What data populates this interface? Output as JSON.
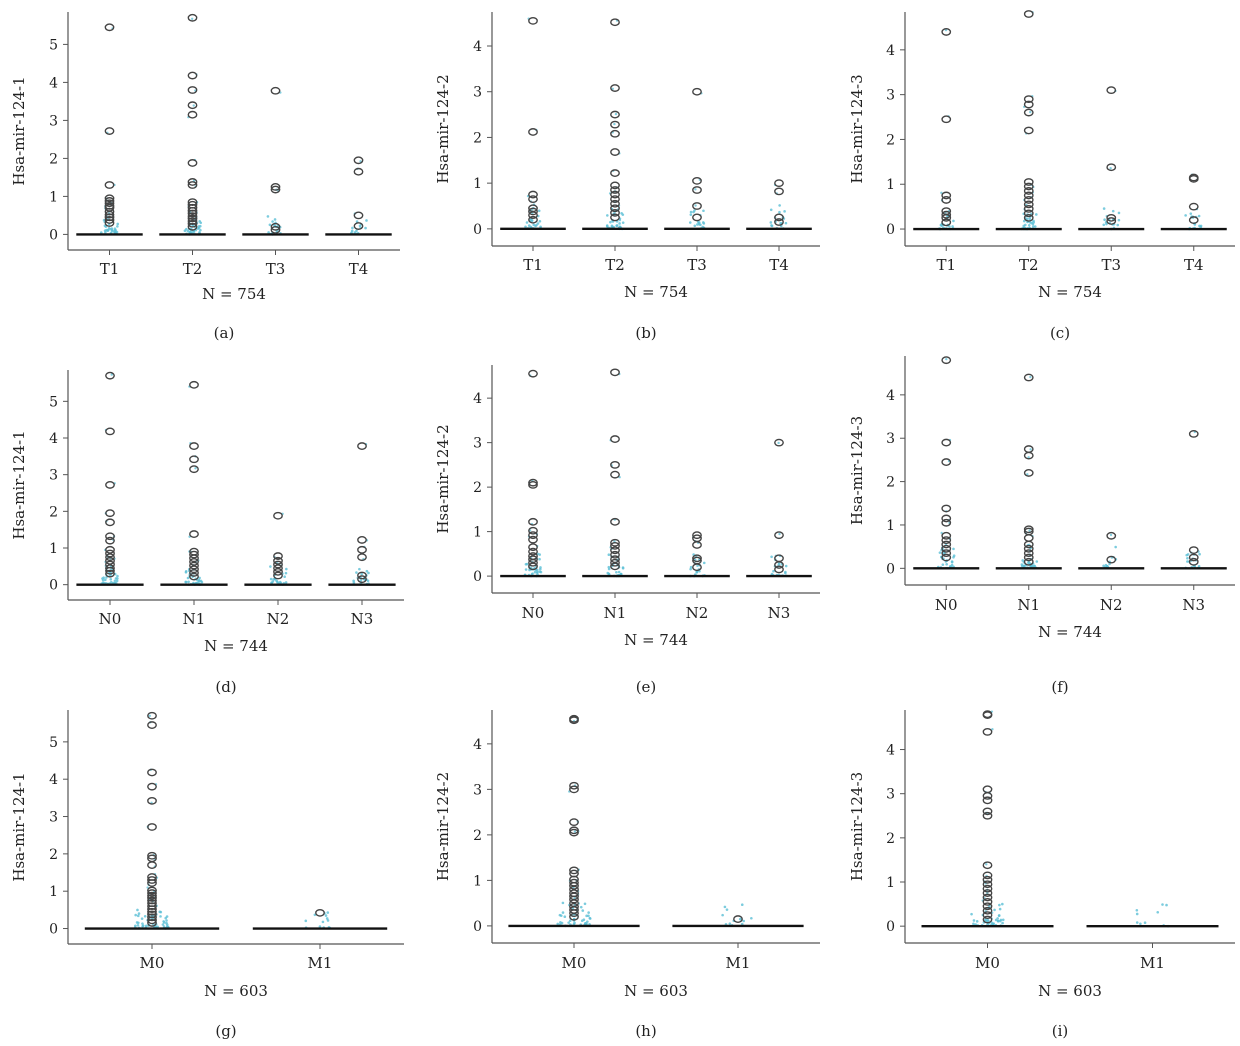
{
  "colors": {
    "axis": "#555555",
    "median": "#111111",
    "outlier_stroke": "#444444",
    "jitter": "#5bbfd6"
  },
  "chart_data": [
    {
      "type": "box",
      "panel": "(a)",
      "ylabel": "Hsa-mir-124-1",
      "n_label": "N = 754",
      "ylim": [
        -0.2,
        5.8
      ],
      "yticks": [
        0,
        1,
        2,
        3,
        4,
        5
      ],
      "categories": [
        "T1",
        "T2",
        "T3",
        "T4"
      ],
      "outliers": [
        [
          5.45,
          2.72,
          1.3,
          0.95,
          0.88,
          0.82,
          0.75,
          0.7,
          0.6,
          0.52,
          0.45,
          0.38,
          0.3
        ],
        [
          5.7,
          4.18,
          3.8,
          3.4,
          3.15,
          1.88,
          1.38,
          1.3,
          0.85,
          0.78,
          0.7,
          0.62,
          0.55,
          0.48,
          0.42,
          0.35,
          0.28,
          0.2
        ],
        [
          3.78,
          1.25,
          1.18,
          0.2,
          0.12
        ],
        [
          1.95,
          1.65,
          0.5,
          0.22
        ]
      ]
    },
    {
      "type": "box",
      "panel": "(b)",
      "ylabel": "Hsa-mir-124-2",
      "n_label": "N = 754",
      "ylim": [
        -0.2,
        4.7
      ],
      "yticks": [
        0,
        1,
        2,
        3,
        4
      ],
      "categories": [
        "T1",
        "T2",
        "T3",
        "T4"
      ],
      "outliers": [
        [
          4.55,
          2.12,
          0.75,
          0.65,
          0.45,
          0.38,
          0.3,
          0.2
        ],
        [
          4.52,
          3.08,
          2.5,
          2.28,
          2.08,
          1.68,
          1.22,
          0.95,
          0.85,
          0.75,
          0.65,
          0.55,
          0.45,
          0.35,
          0.25
        ],
        [
          3.0,
          1.05,
          0.85,
          0.5,
          0.25
        ],
        [
          1.0,
          0.82,
          0.25,
          0.15
        ]
      ]
    },
    {
      "type": "box",
      "panel": "(c)",
      "ylabel": "Hsa-mir-124-3",
      "n_label": "N = 754",
      "ylim": [
        -0.2,
        4.8
      ],
      "yticks": [
        0,
        1,
        2,
        3,
        4
      ],
      "categories": [
        "T1",
        "T2",
        "T3",
        "T4"
      ],
      "outliers": [
        [
          4.4,
          2.45,
          0.75,
          0.65,
          0.4,
          0.32,
          0.25,
          0.15
        ],
        [
          4.8,
          2.9,
          2.78,
          2.6,
          2.2,
          1.05,
          0.95,
          0.85,
          0.75,
          0.65,
          0.55,
          0.45,
          0.35,
          0.25
        ],
        [
          3.1,
          1.38,
          0.25,
          0.18
        ],
        [
          1.15,
          1.12,
          0.5,
          0.2
        ]
      ]
    },
    {
      "type": "box",
      "panel": "(d)",
      "ylabel": "Hsa-mir-124-1",
      "n_label": "N = 744",
      "ylim": [
        -0.2,
        5.8
      ],
      "yticks": [
        0,
        1,
        2,
        3,
        4,
        5
      ],
      "categories": [
        "N0",
        "N1",
        "N2",
        "N3"
      ],
      "outliers": [
        [
          5.7,
          4.18,
          2.72,
          1.95,
          1.7,
          1.32,
          1.2,
          0.95,
          0.85,
          0.75,
          0.65,
          0.55,
          0.45,
          0.38,
          0.3
        ],
        [
          5.45,
          3.78,
          3.42,
          3.15,
          1.38,
          0.9,
          0.82,
          0.72,
          0.62,
          0.52,
          0.42,
          0.32,
          0.22
        ],
        [
          1.88,
          0.78,
          0.65,
          0.55,
          0.45,
          0.35,
          0.25
        ],
        [
          3.78,
          1.22,
          0.95,
          0.75,
          0.25,
          0.15
        ]
      ]
    },
    {
      "type": "box",
      "panel": "(e)",
      "ylabel": "Hsa-mir-124-2",
      "n_label": "N = 744",
      "ylim": [
        -0.2,
        4.7
      ],
      "yticks": [
        0,
        1,
        2,
        3,
        4
      ],
      "categories": [
        "N0",
        "N1",
        "N2",
        "N3"
      ],
      "outliers": [
        [
          4.55,
          2.1,
          2.05,
          1.22,
          1.02,
          0.92,
          0.82,
          0.65,
          0.55,
          0.45,
          0.38,
          0.3,
          0.22
        ],
        [
          4.58,
          3.08,
          2.5,
          2.28,
          1.22,
          0.75,
          0.68,
          0.58,
          0.48,
          0.38,
          0.3,
          0.22
        ],
        [
          0.92,
          0.85,
          0.7,
          0.4,
          0.35,
          0.2
        ],
        [
          3.0,
          0.92,
          0.4,
          0.25,
          0.15
        ]
      ]
    },
    {
      "type": "box",
      "panel": "(f)",
      "ylabel": "Hsa-mir-124-3",
      "n_label": "N = 744",
      "ylim": [
        -0.2,
        4.85
      ],
      "yticks": [
        0,
        1,
        2,
        3,
        4
      ],
      "categories": [
        "N0",
        "N1",
        "N2",
        "N3"
      ],
      "outliers": [
        [
          4.8,
          2.9,
          2.45,
          1.38,
          1.15,
          1.05,
          0.75,
          0.65,
          0.55,
          0.45,
          0.35,
          0.25
        ],
        [
          4.4,
          2.75,
          2.6,
          2.2,
          0.9,
          0.85,
          0.7,
          0.55,
          0.45,
          0.35,
          0.25,
          0.15
        ],
        [
          0.75,
          0.2
        ],
        [
          3.1,
          0.42,
          0.25,
          0.15
        ]
      ]
    },
    {
      "type": "box",
      "panel": "(g)",
      "ylabel": "Hsa-mir-124-1",
      "n_label": "N = 603",
      "ylim": [
        -0.2,
        5.8
      ],
      "yticks": [
        0,
        1,
        2,
        3,
        4,
        5
      ],
      "categories": [
        "M0",
        "M1"
      ],
      "outliers": [
        [
          5.7,
          5.45,
          4.18,
          3.8,
          3.42,
          2.72,
          1.95,
          1.88,
          1.7,
          1.38,
          1.3,
          1.22,
          1.02,
          0.95,
          0.88,
          0.82,
          0.75,
          0.68,
          0.6,
          0.52,
          0.45,
          0.38,
          0.3,
          0.22,
          0.15
        ],
        [
          0.42
        ]
      ]
    },
    {
      "type": "box",
      "panel": "(h)",
      "ylabel": "Hsa-mir-124-2",
      "n_label": "N = 603",
      "ylim": [
        -0.2,
        4.7
      ],
      "yticks": [
        0,
        1,
        2,
        3,
        4
      ],
      "categories": [
        "M0",
        "M1"
      ],
      "outliers": [
        [
          4.55,
          4.52,
          3.08,
          3.0,
          2.28,
          2.1,
          2.05,
          1.22,
          1.15,
          1.02,
          0.95,
          0.88,
          0.8,
          0.72,
          0.65,
          0.58,
          0.5,
          0.42,
          0.35,
          0.28,
          0.2
        ],
        [
          0.15
        ]
      ]
    },
    {
      "type": "box",
      "panel": "(i)",
      "ylabel": "Hsa-mir-124-3",
      "n_label": "N = 603",
      "ylim": [
        -0.2,
        4.85
      ],
      "yticks": [
        0,
        1,
        2,
        3,
        4
      ],
      "categories": [
        "M0",
        "M1"
      ],
      "outliers": [
        [
          4.8,
          4.78,
          4.4,
          3.1,
          2.95,
          2.85,
          2.6,
          2.5,
          1.38,
          1.15,
          1.05,
          0.95,
          0.85,
          0.75,
          0.65,
          0.55,
          0.45,
          0.35,
          0.25,
          0.15
        ],
        []
      ]
    }
  ]
}
